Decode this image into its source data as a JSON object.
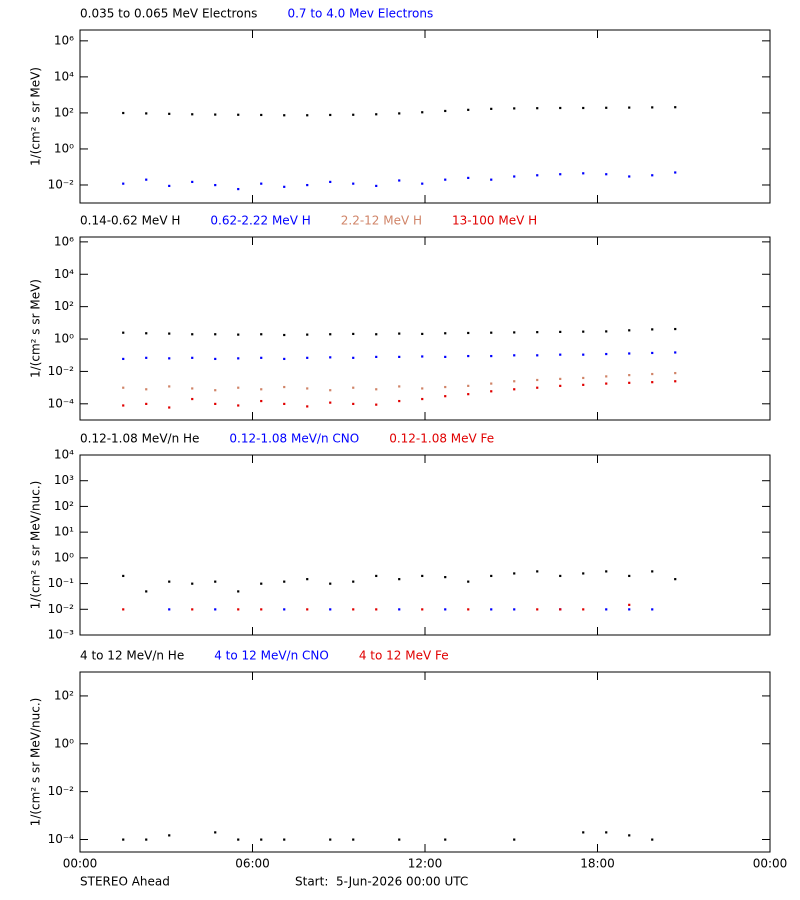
{
  "chart_data": [
    {
      "type": "scatter",
      "log_y": true,
      "y_label": "1/(cm² s sr MeV)",
      "ylim": [
        0.001,
        4000000
      ],
      "yticks": [
        {
          "value": 0.01,
          "label": "10⁻²"
        },
        {
          "value": 1,
          "label": "10⁰"
        },
        {
          "value": 100,
          "label": "10²"
        },
        {
          "value": 10000,
          "label": "10⁴"
        },
        {
          "value": 1000000,
          "label": "10⁶"
        }
      ],
      "x": [
        1.5,
        2.3,
        3.1,
        3.9,
        4.7,
        5.5,
        6.3,
        7.1,
        7.9,
        8.7,
        9.5,
        10.3,
        11.1,
        11.9,
        12.7,
        13.5,
        14.3,
        15.1,
        15.9,
        16.7,
        17.5,
        18.3,
        19.1,
        19.9,
        20.7
      ],
      "series": [
        {
          "name": "0.035 to 0.065 MeV Electrons",
          "color": "#000000",
          "values": [
            100,
            95,
            90,
            85,
            82,
            80,
            78,
            75,
            75,
            78,
            80,
            85,
            95,
            110,
            130,
            150,
            170,
            180,
            185,
            190,
            190,
            195,
            200,
            205,
            210
          ]
        },
        {
          "name": "0.7 to 4.0 Mev Electrons",
          "color": "#0000ff",
          "values": [
            0.012,
            0.02,
            0.009,
            0.015,
            0.01,
            0.006,
            0.012,
            0.008,
            0.01,
            0.015,
            0.012,
            0.009,
            0.018,
            0.012,
            0.02,
            0.025,
            0.02,
            0.03,
            0.035,
            0.04,
            0.045,
            0.04,
            0.03,
            0.035,
            0.05
          ]
        }
      ]
    },
    {
      "type": "scatter",
      "log_y": true,
      "y_label": "1/(cm² s sr MeV)",
      "ylim": [
        1e-05,
        2000000
      ],
      "yticks": [
        {
          "value": 0.0001,
          "label": "10⁻⁴"
        },
        {
          "value": 0.01,
          "label": "10⁻²"
        },
        {
          "value": 1,
          "label": "10⁰"
        },
        {
          "value": 100,
          "label": "10²"
        },
        {
          "value": 10000,
          "label": "10⁴"
        },
        {
          "value": 1000000,
          "label": "10⁶"
        }
      ],
      "x": [
        1.5,
        2.3,
        3.1,
        3.9,
        4.7,
        5.5,
        6.3,
        7.1,
        7.9,
        8.7,
        9.5,
        10.3,
        11.1,
        11.9,
        12.7,
        13.5,
        14.3,
        15.1,
        15.9,
        16.7,
        17.5,
        18.3,
        19.1,
        19.9,
        20.7
      ],
      "series": [
        {
          "name": "0.14-0.62 MeV H",
          "color": "#000000",
          "values": [
            2.5,
            2.3,
            2.2,
            2.0,
            2.0,
            1.9,
            2.0,
            1.8,
            1.9,
            2.0,
            2.1,
            2.0,
            2.2,
            2.1,
            2.3,
            2.4,
            2.5,
            2.6,
            2.7,
            2.8,
            2.9,
            3.0,
            3.5,
            4.0,
            4.2
          ]
        },
        {
          "name": "0.62-2.22 MeV H",
          "color": "#0000ff",
          "values": [
            0.06,
            0.07,
            0.065,
            0.07,
            0.06,
            0.065,
            0.07,
            0.06,
            0.07,
            0.075,
            0.07,
            0.08,
            0.08,
            0.085,
            0.08,
            0.09,
            0.09,
            0.1,
            0.1,
            0.11,
            0.11,
            0.12,
            0.13,
            0.14,
            0.15
          ]
        },
        {
          "name": "2.2-12 MeV H",
          "color": "#d08468",
          "values": [
            0.001,
            0.0008,
            0.0012,
            0.0009,
            0.0007,
            0.001,
            0.0008,
            0.0011,
            0.0009,
            0.0007,
            0.001,
            0.0008,
            0.0012,
            0.0009,
            0.0011,
            0.0013,
            0.0018,
            0.0025,
            0.003,
            0.0035,
            0.004,
            0.005,
            0.006,
            0.007,
            0.008
          ]
        },
        {
          "name": "13-100 MeV H",
          "color": "#e00000",
          "values": [
            8e-05,
            0.0001,
            6e-05,
            0.0002,
            0.0001,
            8e-05,
            0.00015,
            0.0001,
            7e-05,
            0.00012,
            0.0001,
            9e-05,
            0.00015,
            0.0002,
            0.0003,
            0.0004,
            0.0006,
            0.0008,
            0.001,
            0.0013,
            0.0015,
            0.0018,
            0.002,
            0.0022,
            0.0025
          ]
        }
      ]
    },
    {
      "type": "scatter",
      "log_y": true,
      "y_label": "1/(cm² s sr MeV/nuc.)",
      "ylim": [
        0.001,
        10000
      ],
      "yticks": [
        {
          "value": 0.001,
          "label": "10⁻³"
        },
        {
          "value": 0.01,
          "label": "10⁻²"
        },
        {
          "value": 0.1,
          "label": "10⁻¹"
        },
        {
          "value": 1,
          "label": "10⁰"
        },
        {
          "value": 10,
          "label": "10¹"
        },
        {
          "value": 100,
          "label": "10²"
        },
        {
          "value": 1000,
          "label": "10³"
        },
        {
          "value": 10000,
          "label": "10⁴"
        }
      ],
      "x": [
        1.5,
        2.3,
        3.1,
        3.9,
        4.7,
        5.5,
        6.3,
        7.1,
        7.9,
        8.7,
        9.5,
        10.3,
        11.1,
        11.9,
        12.7,
        13.5,
        14.3,
        15.1,
        15.9,
        16.7,
        17.5,
        18.3,
        19.1,
        19.9,
        20.7
      ],
      "series": [
        {
          "name": "0.12-1.08 MeV/n He",
          "color": "#000000",
          "values": [
            0.2,
            0.05,
            0.12,
            0.1,
            0.12,
            0.05,
            0.1,
            0.12,
            0.15,
            0.1,
            0.12,
            0.2,
            0.15,
            0.2,
            0.18,
            0.12,
            0.2,
            0.25,
            0.3,
            0.2,
            0.25,
            0.3,
            0.2,
            0.3,
            0.15
          ]
        },
        {
          "name": "0.12-1.08 MeV/n CNO",
          "color": "#0000ff",
          "values": [
            null,
            null,
            0.01,
            null,
            0.01,
            null,
            null,
            0.01,
            null,
            0.01,
            null,
            null,
            0.01,
            null,
            0.01,
            null,
            0.01,
            0.01,
            null,
            0.01,
            null,
            0.01,
            0.01,
            0.01,
            null
          ]
        },
        {
          "name": "0.12-1.08 MeV Fe",
          "color": "#e00000",
          "values": [
            0.01,
            null,
            null,
            0.01,
            null,
            0.01,
            0.01,
            null,
            0.01,
            null,
            0.01,
            0.01,
            null,
            0.01,
            null,
            0.01,
            null,
            null,
            0.01,
            0.01,
            0.01,
            null,
            0.015,
            null,
            null
          ]
        }
      ]
    },
    {
      "type": "scatter",
      "log_y": true,
      "y_label": "1/(cm² s sr MeV/nuc.)",
      "ylim": [
        3e-05,
        1000
      ],
      "yticks": [
        {
          "value": 0.0001,
          "label": "10⁻⁴"
        },
        {
          "value": 0.01,
          "label": "10⁻²"
        },
        {
          "value": 1,
          "label": "10⁰"
        },
        {
          "value": 100,
          "label": "10²"
        }
      ],
      "x": [
        1.5,
        2.3,
        3.1,
        3.9,
        4.7,
        5.5,
        6.3,
        7.1,
        7.9,
        8.7,
        9.5,
        10.3,
        11.1,
        11.9,
        12.7,
        13.5,
        14.3,
        15.1,
        15.9,
        16.7,
        17.5,
        18.3,
        19.1,
        19.9,
        20.7
      ],
      "series": [
        {
          "name": "4 to 12 MeV/n He",
          "color": "#000000",
          "values": [
            0.0001,
            0.0001,
            0.00015,
            null,
            0.0002,
            0.0001,
            0.0001,
            0.0001,
            null,
            0.0001,
            0.0001,
            null,
            0.0001,
            null,
            0.0001,
            null,
            null,
            0.0001,
            null,
            null,
            0.0002,
            0.0002,
            0.00015,
            0.0001,
            null
          ]
        },
        {
          "name": "4 to 12 MeV/n CNO",
          "color": "#0000ff",
          "values": [
            null,
            null,
            null,
            null,
            null,
            null,
            null,
            null,
            null,
            null,
            null,
            null,
            null,
            null,
            null,
            null,
            null,
            null,
            null,
            null,
            null,
            null,
            null,
            null,
            null
          ]
        },
        {
          "name": "4 to 12 MeV Fe",
          "color": "#e00000",
          "values": [
            null,
            null,
            null,
            null,
            null,
            null,
            null,
            null,
            null,
            null,
            null,
            null,
            null,
            null,
            null,
            null,
            null,
            null,
            null,
            null,
            null,
            null,
            null,
            null,
            null
          ]
        }
      ]
    }
  ],
  "x_axis": {
    "xlim": [
      0,
      24
    ],
    "xticks": [
      {
        "value": 0,
        "label": "00:00"
      },
      {
        "value": 6,
        "label": "06:00"
      },
      {
        "value": 12,
        "label": "12:00"
      },
      {
        "value": 18,
        "label": "18:00"
      },
      {
        "value": 24,
        "label": "00:00"
      }
    ]
  },
  "footer": {
    "spacecraft": "STEREO Ahead",
    "start": "Start:  5-Jun-2026 00:00 UTC"
  }
}
